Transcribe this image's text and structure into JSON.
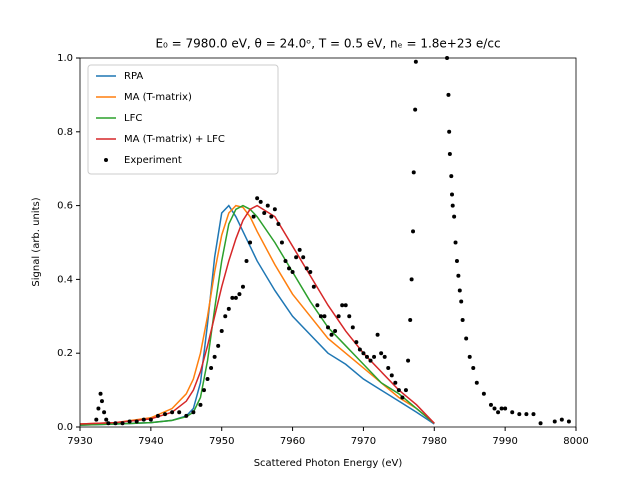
{
  "chart_data": {
    "type": "line",
    "title": "E₀ = 7980.0 eV, θ = 24.0ᵒ, T = 0.5 eV, nₑ = 1.8e+23 e/cc",
    "x_label": "Scattered Photon Energy (eV)",
    "y_label": "Signal (arb. units)",
    "xlim": [
      7930,
      8000
    ],
    "xticks": [
      7930,
      7940,
      7950,
      7960,
      7970,
      7980,
      7990,
      8000
    ],
    "ylim": [
      0,
      1
    ],
    "yticks": [
      {
        "value": 0,
        "label": "0.0"
      },
      0.2,
      0.4,
      0.6,
      0.8,
      {
        "value": 1,
        "label": "1.0"
      }
    ],
    "legend": "upper left",
    "series": [
      {
        "name": "RPA",
        "color": "#1f77b4",
        "style": "line",
        "x": [
          7930,
          7935,
          7940,
          7943,
          7945,
          7946,
          7947,
          7948,
          7949,
          7950,
          7951,
          7952,
          7953,
          7954,
          7955,
          7957.5,
          7960,
          7962.5,
          7965,
          7967.5,
          7970,
          7972.5,
          7975,
          7977.5,
          7980
        ],
        "values": [
          0.005,
          0.008,
          0.012,
          0.018,
          0.03,
          0.05,
          0.12,
          0.28,
          0.46,
          0.58,
          0.6,
          0.57,
          0.53,
          0.49,
          0.45,
          0.37,
          0.3,
          0.25,
          0.2,
          0.17,
          0.13,
          0.1,
          0.07,
          0.04,
          0.008
        ]
      },
      {
        "name": "MA (T-matrix)",
        "color": "#ff7f0e",
        "style": "line",
        "x": [
          7930,
          7935,
          7940,
          7943,
          7945,
          7946,
          7947,
          7948,
          7949,
          7950,
          7951,
          7952,
          7953,
          7954,
          7955,
          7957.5,
          7960,
          7962.5,
          7965,
          7967.5,
          7970,
          7972.5,
          7975,
          7977.5,
          7980
        ],
        "values": [
          0.008,
          0.012,
          0.025,
          0.05,
          0.09,
          0.13,
          0.2,
          0.3,
          0.42,
          0.52,
          0.58,
          0.6,
          0.595,
          0.57,
          0.53,
          0.44,
          0.36,
          0.3,
          0.24,
          0.2,
          0.16,
          0.12,
          0.08,
          0.05,
          0.01
        ]
      },
      {
        "name": "LFC",
        "color": "#2ca02c",
        "style": "line",
        "x": [
          7930,
          7935,
          7940,
          7943,
          7945,
          7946,
          7947,
          7948,
          7949,
          7950,
          7951,
          7952,
          7953,
          7954,
          7955,
          7957.5,
          7960,
          7962.5,
          7965,
          7967.5,
          7970,
          7972.5,
          7975,
          7977.5,
          7980
        ],
        "values": [
          0.005,
          0.008,
          0.012,
          0.018,
          0.028,
          0.04,
          0.08,
          0.18,
          0.32,
          0.45,
          0.55,
          0.59,
          0.6,
          0.59,
          0.57,
          0.5,
          0.42,
          0.34,
          0.27,
          0.22,
          0.17,
          0.12,
          0.09,
          0.05,
          0.01
        ]
      },
      {
        "name": "MA (T-matrix) + LFC",
        "color": "#d62728",
        "style": "line",
        "x": [
          7930,
          7935,
          7940,
          7943,
          7945,
          7946,
          7947,
          7948,
          7949,
          7950,
          7951,
          7952,
          7953,
          7954,
          7955,
          7957.5,
          7960,
          7962.5,
          7965,
          7967.5,
          7970,
          7972.5,
          7975,
          7977.5,
          7980
        ],
        "values": [
          0.008,
          0.012,
          0.022,
          0.04,
          0.07,
          0.1,
          0.15,
          0.22,
          0.3,
          0.38,
          0.45,
          0.51,
          0.56,
          0.59,
          0.6,
          0.57,
          0.49,
          0.41,
          0.33,
          0.26,
          0.2,
          0.15,
          0.1,
          0.06,
          0.01
        ]
      },
      {
        "name": "Experiment",
        "color": "#000000",
        "style": "points",
        "x": [
          7932.3,
          7932.6,
          7932.9,
          7933.1,
          7933.4,
          7933.7,
          7934,
          7935,
          7936,
          7937,
          7938,
          7939,
          7940,
          7941,
          7942,
          7943,
          7944,
          7945,
          7946,
          7947,
          7947.5,
          7948,
          7948.5,
          7949,
          7949.5,
          7950,
          7950.5,
          7951,
          7951.5,
          7952,
          7952.5,
          7953,
          7953.5,
          7954,
          7954.5,
          7955,
          7955.5,
          7956,
          7956.5,
          7957,
          7957.5,
          7958,
          7958.5,
          7959,
          7959.5,
          7960,
          7960.5,
          7961,
          7961.5,
          7962,
          7962.5,
          7963,
          7963.5,
          7964,
          7964.5,
          7965,
          7965.5,
          7966,
          7966.5,
          7967,
          7967.5,
          7968,
          7968.5,
          7969,
          7969.5,
          7970,
          7970.5,
          7971,
          7971.5,
          7972,
          7972.5,
          7973,
          7973.5,
          7974,
          7974.5,
          7975,
          7975.5,
          7976,
          7976.3,
          7976.6,
          7976.8,
          7977,
          7977.1,
          7977.3,
          7977.4,
          7981.8,
          7982,
          7982.1,
          7982.2,
          7982.4,
          7982.5,
          7982.6,
          7982.8,
          7983,
          7983.2,
          7983.4,
          7983.6,
          7983.8,
          7984,
          7984.5,
          7985,
          7985.5,
          7986,
          7987,
          7988,
          7988.5,
          7989,
          7989.5,
          7990,
          7991,
          7992,
          7993,
          7994,
          7995,
          7997,
          7998,
          7999
        ],
        "values": [
          0.02,
          0.05,
          0.09,
          0.07,
          0.04,
          0.02,
          0.01,
          0.01,
          0.01,
          0.015,
          0.015,
          0.02,
          0.02,
          0.03,
          0.035,
          0.04,
          0.04,
          0.03,
          0.04,
          0.06,
          0.1,
          0.13,
          0.16,
          0.19,
          0.22,
          0.26,
          0.3,
          0.32,
          0.35,
          0.35,
          0.36,
          0.38,
          0.45,
          0.5,
          0.57,
          0.62,
          0.61,
          0.58,
          0.6,
          0.57,
          0.59,
          0.55,
          0.5,
          0.45,
          0.43,
          0.42,
          0.46,
          0.48,
          0.46,
          0.43,
          0.42,
          0.38,
          0.33,
          0.3,
          0.3,
          0.27,
          0.25,
          0.26,
          0.3,
          0.33,
          0.33,
          0.3,
          0.27,
          0.23,
          0.21,
          0.2,
          0.19,
          0.18,
          0.19,
          0.25,
          0.2,
          0.19,
          0.16,
          0.14,
          0.12,
          0.1,
          0.08,
          0.1,
          0.18,
          0.29,
          0.4,
          0.53,
          0.69,
          0.86,
          0.99,
          1.0,
          0.9,
          0.8,
          0.74,
          0.68,
          0.63,
          0.6,
          0.57,
          0.5,
          0.45,
          0.41,
          0.37,
          0.34,
          0.29,
          0.24,
          0.19,
          0.16,
          0.12,
          0.09,
          0.06,
          0.05,
          0.04,
          0.05,
          0.05,
          0.04,
          0.035,
          0.035,
          0.035,
          0.01,
          0.015,
          0.02,
          0.015
        ]
      }
    ]
  }
}
